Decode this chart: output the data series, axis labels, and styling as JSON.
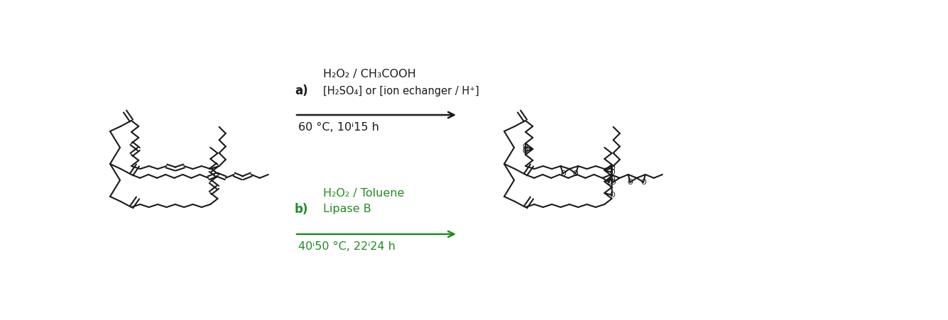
{
  "bg_color": "#ffffff",
  "black": "#1a1a1a",
  "green": "#228B22",
  "figsize": [
    13.35,
    4.51
  ],
  "dpi": 100,
  "reaction_a_line1": "H₂O₂ / CH₃COOH",
  "reaction_a_line2": "[H₂SO₄] or [ion echanger / H⁺]",
  "reaction_a_label": "a)",
  "reaction_a_conditions": "60 °C, 10ⁱ15 h",
  "reaction_b_line1": "H₂O₂ / Toluene",
  "reaction_b_line2": "Lipase B",
  "reaction_b_label": "b)",
  "reaction_b_conditions": "40ⁱ50 °C, 22ⁱ24 h"
}
